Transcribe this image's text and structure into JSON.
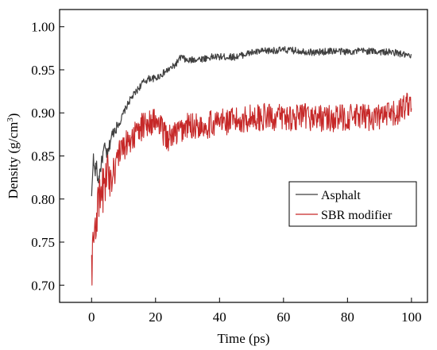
{
  "chart_data": {
    "type": "line",
    "title": "",
    "xlabel": "Time (ps)",
    "ylabel": {
      "main": "Density (g/cm",
      "sup": "3",
      "close": ")"
    },
    "xlim": [
      -10,
      105
    ],
    "ylim": [
      0.68,
      1.02
    ],
    "xticks": [
      0,
      20,
      40,
      60,
      80,
      100
    ],
    "yticks": [
      0.7,
      0.75,
      0.8,
      0.85,
      0.9,
      0.95,
      1.0
    ],
    "ytick_labels": [
      "0.70",
      "0.75",
      "0.80",
      "0.85",
      "0.90",
      "0.95",
      "1.00"
    ],
    "legend_position": "center-right",
    "grid": false,
    "series": [
      {
        "name": "Asphalt",
        "color": "#3f3f3f",
        "x": [
          0,
          0.5,
          1,
          1.5,
          2,
          3,
          4,
          5,
          6,
          7,
          8,
          9,
          10,
          12,
          14,
          16,
          18,
          20,
          22,
          24,
          26,
          28,
          30,
          32,
          35,
          38,
          40,
          45,
          50,
          55,
          60,
          65,
          70,
          75,
          80,
          85,
          90,
          95,
          100
        ],
        "y": [
          0.8,
          0.85,
          0.83,
          0.84,
          0.82,
          0.84,
          0.86,
          0.85,
          0.87,
          0.88,
          0.885,
          0.89,
          0.9,
          0.915,
          0.925,
          0.935,
          0.94,
          0.94,
          0.945,
          0.95,
          0.955,
          0.965,
          0.96,
          0.962,
          0.963,
          0.965,
          0.965,
          0.965,
          0.97,
          0.972,
          0.973,
          0.972,
          0.97,
          0.972,
          0.971,
          0.972,
          0.971,
          0.97,
          0.965
        ]
      },
      {
        "name": "SBR modifier",
        "color": "#c62828",
        "x": [
          0,
          1,
          2,
          3,
          4,
          5,
          6,
          7,
          8,
          10,
          12,
          14,
          16,
          18,
          20,
          22,
          24,
          26,
          28,
          30,
          35,
          40,
          45,
          50,
          55,
          60,
          65,
          70,
          75,
          80,
          85,
          90,
          95,
          100
        ],
        "y": [
          0.72,
          0.77,
          0.79,
          0.8,
          0.82,
          0.83,
          0.83,
          0.84,
          0.85,
          0.86,
          0.87,
          0.875,
          0.885,
          0.89,
          0.89,
          0.88,
          0.87,
          0.875,
          0.88,
          0.885,
          0.885,
          0.89,
          0.89,
          0.895,
          0.895,
          0.895,
          0.895,
          0.895,
          0.893,
          0.895,
          0.895,
          0.895,
          0.898,
          0.915
        ]
      }
    ]
  }
}
